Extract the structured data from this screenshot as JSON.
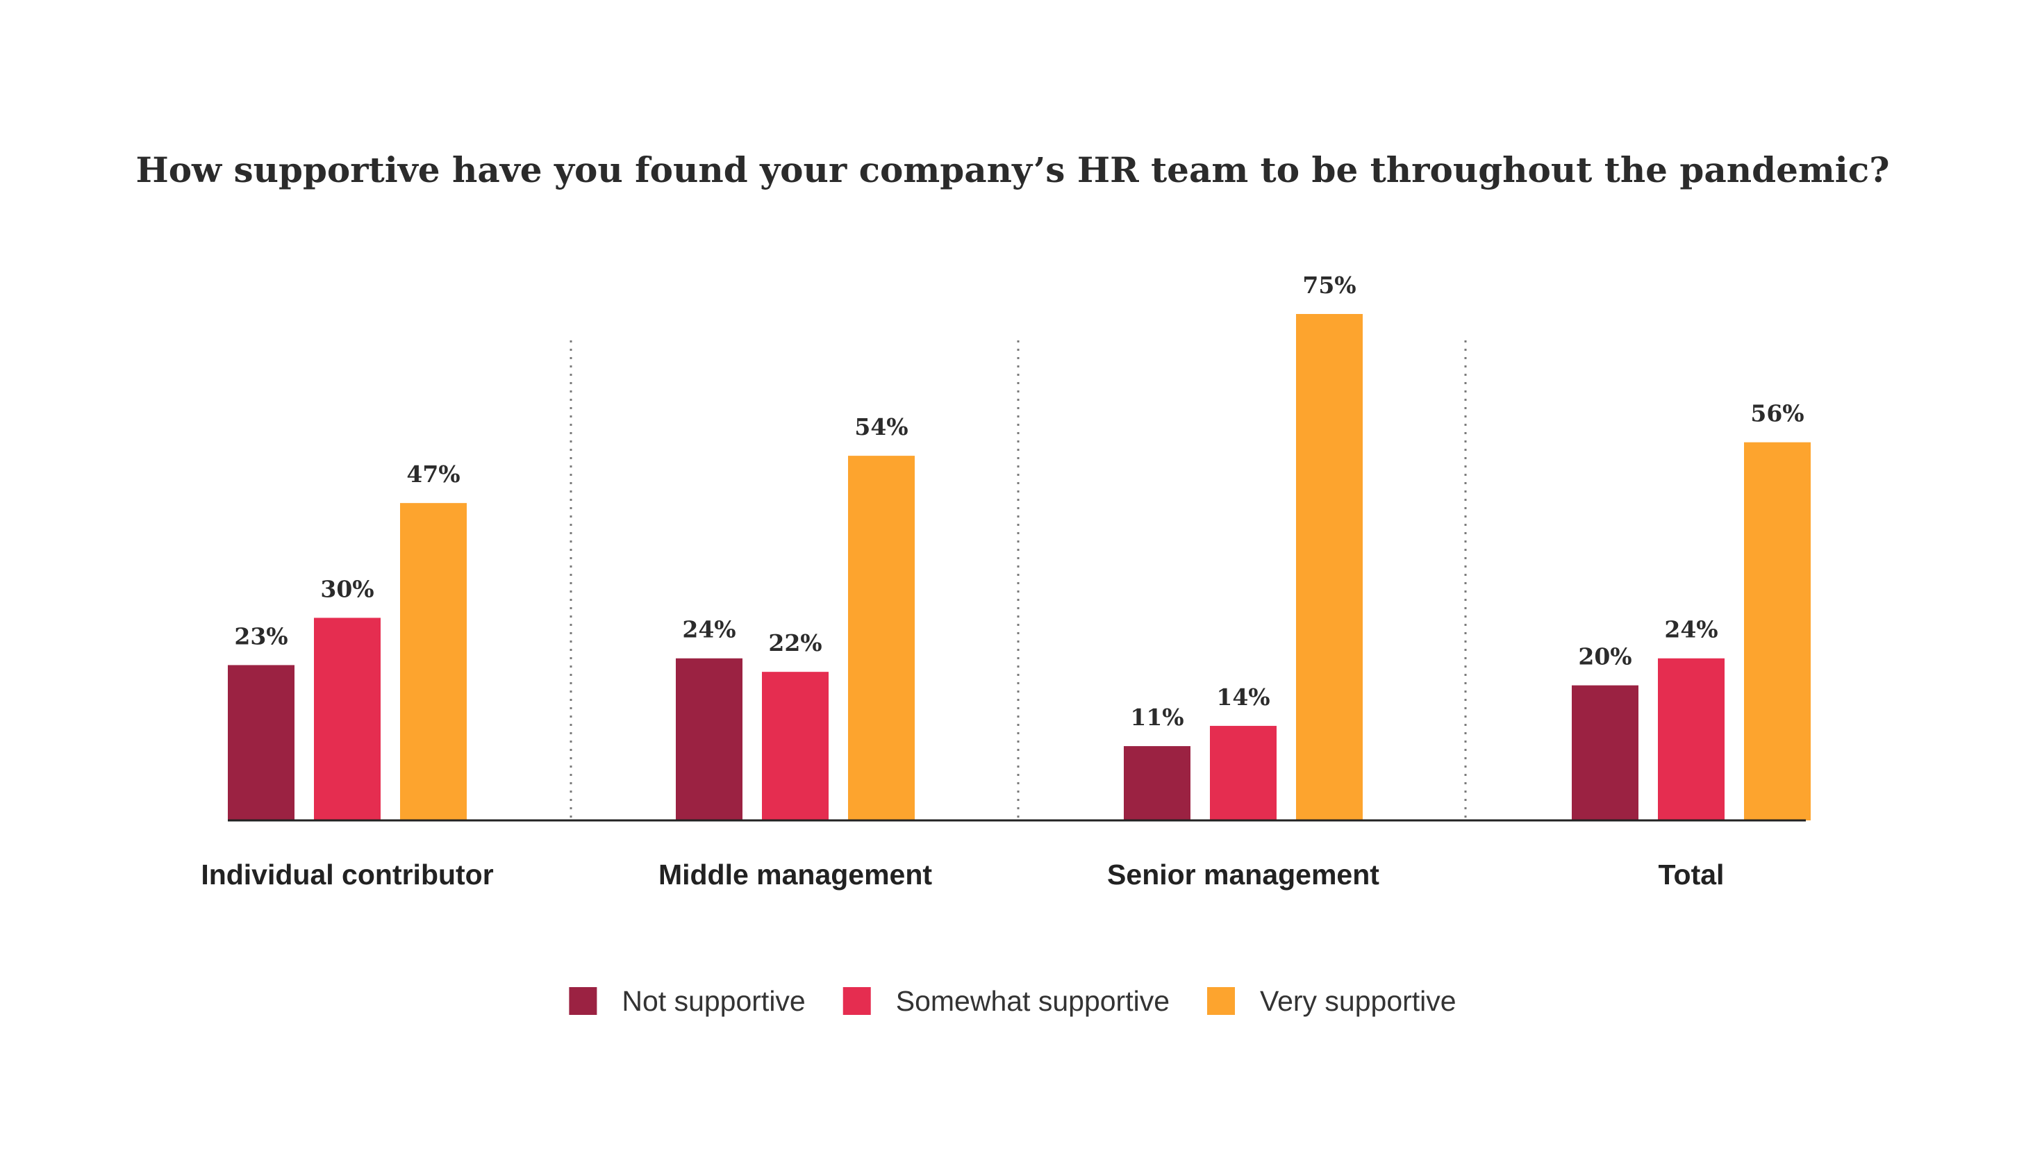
{
  "chart_data": {
    "type": "bar",
    "title": "How supportive have you found your company’s HR team to be throughout the pandemic?",
    "xlabel": "",
    "ylabel": "",
    "ylim": [
      0,
      80
    ],
    "grid": false,
    "legend_position": "bottom",
    "categories": [
      "Individual contributor",
      "Middle management",
      "Senior management",
      "Total"
    ],
    "series": [
      {
        "name": "Not supportive",
        "color": "#9b2242",
        "values": [
          23,
          24,
          11,
          20
        ],
        "labels": [
          "23%",
          "24%",
          "11%",
          "20%"
        ]
      },
      {
        "name": "Somewhat supportive",
        "color": "#e52d50",
        "values": [
          30,
          22,
          14,
          24
        ],
        "labels": [
          "30%",
          "22%",
          "14%",
          "24%"
        ]
      },
      {
        "name": "Very supportive",
        "color": "#fda42e",
        "values": [
          47,
          54,
          75,
          56
        ],
        "labels": [
          "47%",
          "54%",
          "75%",
          "56%"
        ]
      }
    ]
  }
}
